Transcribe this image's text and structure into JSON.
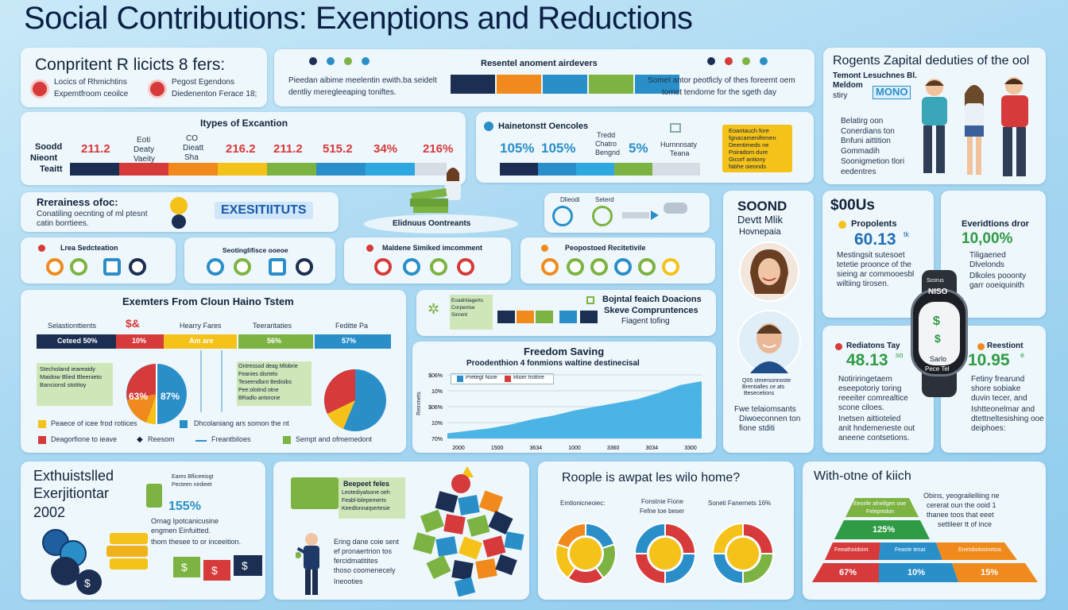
{
  "page": {
    "title": "Social Contributions: Exenptions and Reductions"
  },
  "contrib": {
    "title": "Conpritent R licicts 8 fers:",
    "item1": "Locics of Rhmichtins",
    "item2": "Pegost Egendons",
    "item3": "Expemtfroom ceoilce",
    "item4": "Diedenenton Ferace 18;"
  },
  "bar_top": {
    "title": "Resentel anoment airdevers",
    "left_text_1": "Pieedan aibime meelentin ewith.ba seidelt",
    "left_text_2": "dentliy meregleeaping toniftes.",
    "right_text_1": "Somet antor peotficly of thes foreemt oem",
    "right_text_2": "tomet tendome for the sgeth day"
  },
  "right_top": {
    "title": "Rogents Zapital deduties of the ool",
    "sub1": "Temont Lesuchnes Bl.",
    "sub2": "Meldom",
    "sub3": "stiry",
    "badge": "MONO",
    "b1": "Belatirg oon",
    "b2": "Conerdians ton",
    "b3": "Bnfuni aittition",
    "b4": "Gommadih",
    "b5": "Soonigmetion tlori",
    "b6": "eedentres"
  },
  "exemptions": {
    "title": "Itypes of Excantion",
    "side1": "Soodd",
    "side2": "Nieont",
    "side3": "Teaitt",
    "head1": "Eoti",
    "head2": "Deaty",
    "head3": "Vaeity",
    "head4": "CO",
    "head5": "Dieatt",
    "head6": "Sha",
    "v1": "211.2",
    "v2": "216.2",
    "v3": "211.2",
    "v4": "515.2",
    "v5": "34%",
    "v6": "216%"
  },
  "reductions": {
    "title": "Hainetonstt Oencoles",
    "v1": "105%",
    "v2": "105%",
    "h1": "Tredd",
    "h2": "Chatro",
    "h3": "Bengnd",
    "v3": "5%",
    "h4": "Hurnnnsaty",
    "h5": "Teana",
    "note1": "Eoantauch fore",
    "note2": "fgnacamenifemen",
    "note3": "Deentimeds ne",
    "note4": "Poiradom dure",
    "note5": "Gicorf antiony",
    "note6": "fabhe oieonds"
  },
  "residence": {
    "title": "Rrerainess ofoc:",
    "line1": "Conatiling oecnting of ml ptesnt",
    "line2": "catin borrtiees.",
    "badge": "EXESITIITUTS",
    "banner": "Elidnuus Oontreants"
  },
  "dials": {
    "l1": "Dlieodi",
    "l2": "Seterd"
  },
  "cats": {
    "c1": "Lrea Sedcteation",
    "c2": "Seotinglifisce ooeoe",
    "c3": "Maldene Simiked imcomment",
    "c4": "Peopostoed Recitetivile"
  },
  "exempt_cluster": {
    "title": "Exemters From Cloun Haino Tstem",
    "h1": "Selastionttients",
    "h2": "Hearry Fares",
    "h3": "Teeraritaties",
    "h4": "Feditte Pa",
    "s1": "Ceteed 50%",
    "s2": "10%",
    "s3": "Am are",
    "s4": "56%",
    "s5": "57%",
    "note_a1": "Stecholand ieareaidy",
    "note_a2": "Maidow Blied Bleenieto",
    "note_a3": "Bancionsl stotitoy",
    "pie_a1": "63%",
    "pie_a2": "87%",
    "note_b1": "Ontressod deag Mlobrie",
    "note_b2": "Feanies disrtelo",
    "note_b3": "Teoeendlant Bedioibs",
    "note_b4": "Pee:oloitnd otne",
    "note_b5": "BRadlo antorone",
    "leg1": "Peaece of icee frod rotiices",
    "leg2": "Dhcolaniang ars somon the nt",
    "leg3": "Deagorfione to ieave",
    "leg4": "Reesom",
    "leg5": "Freantbiloes",
    "leg6": "Sempt and ofmemedont"
  },
  "flow": {
    "t1": "Bojntal feaich Doacions",
    "t2": "Skeve Compruntences",
    "t3": "Fiagent tofing",
    "n1": "Eoadntiagerts",
    "n2": "Corpenlse",
    "n3": "Sinnmt"
  },
  "chart": {
    "title": "Freedom Saving",
    "subtitle": "Proodenthion 4 fonmions waltine destinecisal",
    "legend1": "Pretegt Nore",
    "legend2": "Rloer frothre",
    "ylabel": "Reinmets"
  },
  "profile": {
    "t1": "SOOND",
    "t2": "Devtt Mlik",
    "t3": "Hovnepaia",
    "q1": "Q05 stmersonnoste",
    "q2": "Brentialles ce ats",
    "q3": "Besecetions",
    "b1": "Fwe telaiomsants",
    "b2": "Diwoeconnen ton",
    "b3": "fione stditi"
  },
  "stat1": {
    "t": "$00Us",
    "label": "Propolents",
    "value": "60.13",
    "sup": "tk",
    "l1": "Mestingsit sutesoet",
    "l2": "tetetie proonce of the",
    "l3": "sieing ar commooesbl",
    "l4": "wiltiing tirosen."
  },
  "stat2": {
    "label": "Everidtions dror",
    "value": "10,00%",
    "l1": "Tiligaened",
    "l2": "Dlvelonds",
    "l3": "Dlkoles pooonty",
    "l4": "garr ooeiquinith"
  },
  "stat3": {
    "label": "Rediatons Tay",
    "value": "48.13",
    "sup": "so",
    "l1": "Notiriringetaem",
    "l2": "eseepotoriy toring",
    "l3": "reeeiter comrealtice",
    "l4": "scone ciloes.",
    "l5": "Inetsen aittioteled",
    "l6": "anit hndemeneste out",
    "l7": "aneene contsetions."
  },
  "stat4": {
    "label": "Reestiont",
    "value": "10.95",
    "sup": "e",
    "l1": "Fetiny frearund",
    "l2": "shore sobiake",
    "l3": "duvin tecer, and",
    "l4": "Ishtteonelmar and",
    "l5": "dtettneltesishing ooe",
    "l6": "deiphoes:"
  },
  "watch": {
    "t1": "Scorus",
    "t2": "NISO",
    "t3": "Sarlo",
    "t4": "Pece Tel"
  },
  "exh": {
    "t1": "Exthuistslled",
    "t2": "Exerjitiontar",
    "t3": "2002",
    "pct": "155%",
    "n1": "Eares Bfliceeiogt",
    "n2": "Pecteen nirdieet",
    "n3": "Ornag Ipotcanicusine",
    "n4": "engmen Einfuitted.",
    "n5": "thom thesee to or inceeition."
  },
  "puzzle": {
    "n1": "Beepeet feles",
    "n2": "Leotediyalsone oeh",
    "n3": "Feabl-bilepemerts",
    "n4": "Keedlonnarpertesie",
    "p1": "Ering dane coie sent",
    "p2": "ef pronaertrion tos",
    "p3": "fercidmatitites",
    "p4": "thoso coomenecely",
    "p5": "Ineooties"
  },
  "donuts": {
    "title": "Roople is awpat les wilo home?",
    "l1": "Emtlonicneoiec:",
    "l2": "Fonstnie Fione",
    "l2b": "Fefne toe beser",
    "l3": "Soneti Fanernets 16%"
  },
  "pyramid": {
    "title": "With-otne of kiich",
    "text1": "Obins, yeograilelliing ne",
    "text2": "cererat oun the ooid 1",
    "text3": "thanee toos that eeet",
    "text4": "settileer tt of ince",
    "top1": "Eeonfe afnellgen ooe",
    "top2": "Felepmdon",
    "v1": "125%",
    "m1": "Feeathoidoint",
    "m2": "Feaste tesat",
    "m3": "Enetsbolosinetoa",
    "v2": "67%",
    "v3": "10%",
    "v4": "15%"
  },
  "colors": {
    "navy": "#1c2f52",
    "red": "#d63a3a",
    "orange": "#f08a1c",
    "yellow": "#f5c21a",
    "green": "#7cb342",
    "blue": "#2a8fc9",
    "sky": "#2fa8e0"
  }
}
